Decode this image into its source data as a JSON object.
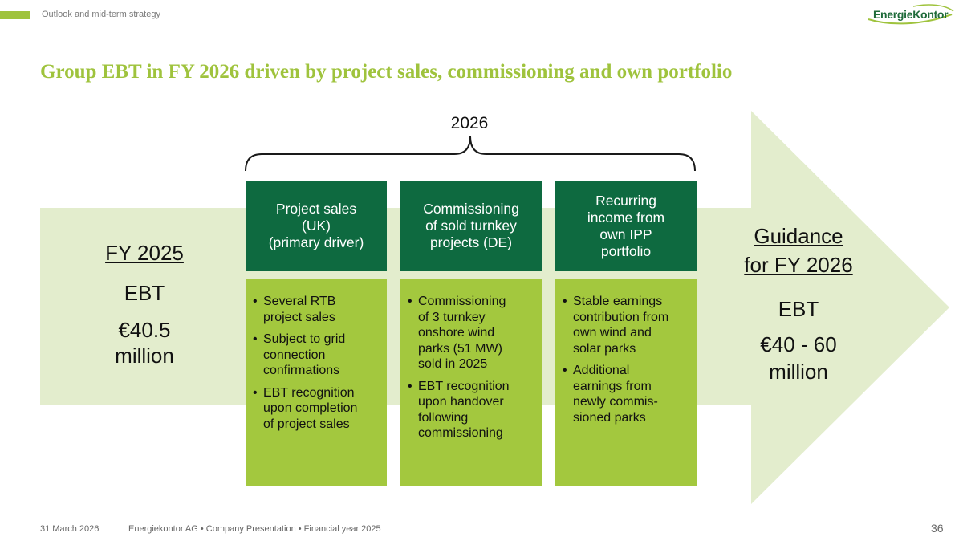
{
  "header": {
    "section_label": "Outlook and mid-term strategy",
    "logo_text": "EnergieKontor"
  },
  "title": "Group EBT in FY 2026 driven by project sales, commissioning and own portfolio",
  "year_label": "2026",
  "left": {
    "heading": "FY 2025",
    "metric": "EBT",
    "value_line1": "€40.5",
    "value_line2": "million"
  },
  "right": {
    "heading_line1": "Guidance",
    "heading_line2": "for FY 2026",
    "metric": "EBT",
    "value_line1": "€40 - 60",
    "value_line2": "million"
  },
  "columns": [
    {
      "head_lines": [
        "Project sales",
        "(UK)",
        "(primary driver)"
      ],
      "bullets": [
        [
          "Several RTB",
          "project sales"
        ],
        [
          "Subject to grid",
          "connection",
          "confirmations"
        ],
        [
          "EBT recognition",
          "upon completion",
          "of project sales"
        ]
      ]
    },
    {
      "head_lines": [
        "Commissioning",
        "of sold turnkey",
        "projects (DE)"
      ],
      "bullets": [
        [
          "Commissioning",
          "of 3 turnkey",
          "onshore wind",
          "parks (51 MW)",
          "sold in 2025"
        ],
        [
          "EBT recognition",
          "upon handover",
          "following",
          "commissioning"
        ]
      ]
    },
    {
      "head_lines": [
        "Recurring",
        "income from",
        "own IPP",
        "portfolio"
      ],
      "bullets": [
        [
          "Stable earnings",
          "contribution from",
          "own wind and",
          "solar parks"
        ],
        [
          "Additional",
          "earnings from",
          "newly commis-",
          "sioned parks"
        ]
      ]
    }
  ],
  "footer": {
    "date": "31 March 2026",
    "text": "Energiekontor AG • Company Presentation • Financial year 2025",
    "page_number": "36"
  },
  "colors": {
    "accent_green": "#9fc33d",
    "dark_green": "#0e6a40",
    "body_green": "#a3c83e",
    "arrow_fill": "#e3edcd"
  }
}
